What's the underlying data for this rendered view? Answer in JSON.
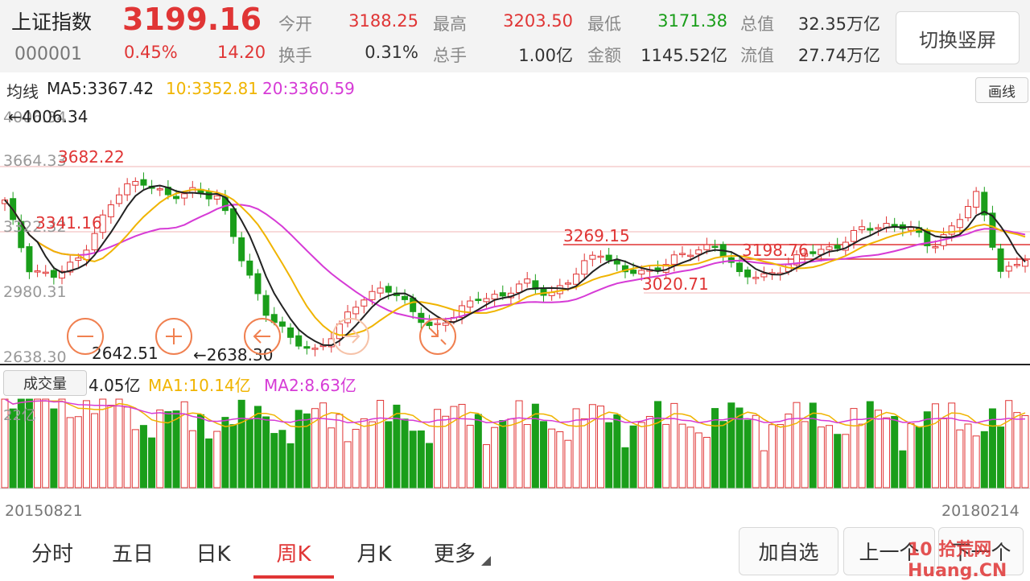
{
  "header": {
    "index_name": "上证指数",
    "code": "000001",
    "price": "3199.16",
    "change_pct": "0.45%",
    "change_pts": "14.20",
    "stats": [
      {
        "label": "今开",
        "value": "3188.25"
      },
      {
        "label": "最高",
        "value": "3203.50"
      },
      {
        "label": "最低",
        "value": "3171.38"
      },
      {
        "label": "总值",
        "value": "32.35万亿"
      },
      {
        "label": "换手",
        "value": "0.31%"
      },
      {
        "label": "总手",
        "value": "1.00亿"
      },
      {
        "label": "金额",
        "value": "1145.52亿"
      },
      {
        "label": "流值",
        "value": "27.74万亿"
      }
    ],
    "toggle_label": "切换竖屏"
  },
  "ma_legend": {
    "label": "均线",
    "ma5": "MA5:3367.42",
    "ma10": "10:3352.81",
    "ma20": "20:3360.59",
    "draw_label": "画线"
  },
  "price_axis": {
    "labels": [
      "4006.34",
      "3664.33",
      "3322.32",
      "2980.31",
      "2638.30"
    ]
  },
  "annotations": {
    "high": "←4006.34",
    "a1": "3682.22",
    "a2": "3341.16",
    "a3": "3269.15",
    "a4": "3198.76",
    "a5": "3020.71",
    "low_left": "2642.51",
    "low": "←2638.30"
  },
  "volume": {
    "label": "成交量",
    "current": "4.05亿",
    "ma1": "MA1:10.14亿",
    "ma2": "MA2:8.63亿",
    "axis_top": "22亿"
  },
  "dates": {
    "start": "20150821",
    "end": "20180214"
  },
  "tabs": [
    {
      "label": "分时"
    },
    {
      "label": "五日"
    },
    {
      "label": "日K"
    },
    {
      "label": "周K"
    },
    {
      "label": "月K"
    },
    {
      "label": "更多"
    }
  ],
  "buttons": {
    "add_watch": "加自选",
    "prev": "上一个",
    "next": "下一个"
  },
  "watermark": "10 拾荒网 Huang.CN",
  "colors": {
    "up": "#e03535",
    "down": "#1a9e1a",
    "ma5": "#222222",
    "ma10": "#f0b400",
    "ma20": "#d63bd6"
  },
  "chart_data": {
    "type": "candlestick",
    "period": "weekly",
    "ylim": [
      2638.3,
      4006.34
    ],
    "close_points": [
      [
        "2015-08-21",
        3510
      ],
      [
        "2015-09-04",
        3160
      ],
      [
        "2015-09-18",
        3100
      ],
      [
        "2015-10-09",
        3180
      ],
      [
        "2015-10-23",
        3400
      ],
      [
        "2015-11-06",
        3590
      ],
      [
        "2015-11-20",
        3630
      ],
      [
        "2015-12-04",
        3520
      ],
      [
        "2015-12-18",
        3580
      ],
      [
        "2015-12-31",
        3540
      ],
      [
        "2016-01-08",
        3190
      ],
      [
        "2016-01-22",
        2920
      ],
      [
        "2016-02-05",
        2760
      ],
      [
        "2016-02-26",
        2700
      ],
      [
        "2016-03-11",
        2810
      ],
      [
        "2016-03-25",
        2980
      ],
      [
        "2016-04-15",
        3060
      ],
      [
        "2016-05-06",
        2930
      ],
      [
        "2016-05-27",
        2830
      ],
      [
        "2016-06-17",
        2890
      ],
      [
        "2016-07-08",
        3000
      ],
      [
        "2016-08-05",
        3000
      ],
      [
        "2016-09-02",
        3070
      ],
      [
        "2016-09-30",
        3010
      ],
      [
        "2016-10-28",
        3100
      ],
      [
        "2016-11-25",
        3260
      ],
      [
        "2016-12-16",
        3130
      ],
      [
        "2017-01-13",
        3120
      ],
      [
        "2017-02-10",
        3200
      ],
      [
        "2017-03-10",
        3230
      ],
      [
        "2017-04-07",
        3290
      ],
      [
        "2017-05-05",
        3100
      ],
      [
        "2017-05-26",
        3110
      ],
      [
        "2017-06-23",
        3170
      ],
      [
        "2017-07-21",
        3240
      ],
      [
        "2017-08-18",
        3270
      ],
      [
        "2017-09-15",
        3350
      ],
      [
        "2017-10-20",
        3390
      ],
      [
        "2017-11-17",
        3380
      ],
      [
        "2017-12-15",
        3260
      ],
      [
        "2018-01-05",
        3390
      ],
      [
        "2018-01-26",
        3550
      ],
      [
        "2018-02-09",
        3130
      ],
      [
        "2018-02-14",
        3199.16
      ]
    ]
  }
}
